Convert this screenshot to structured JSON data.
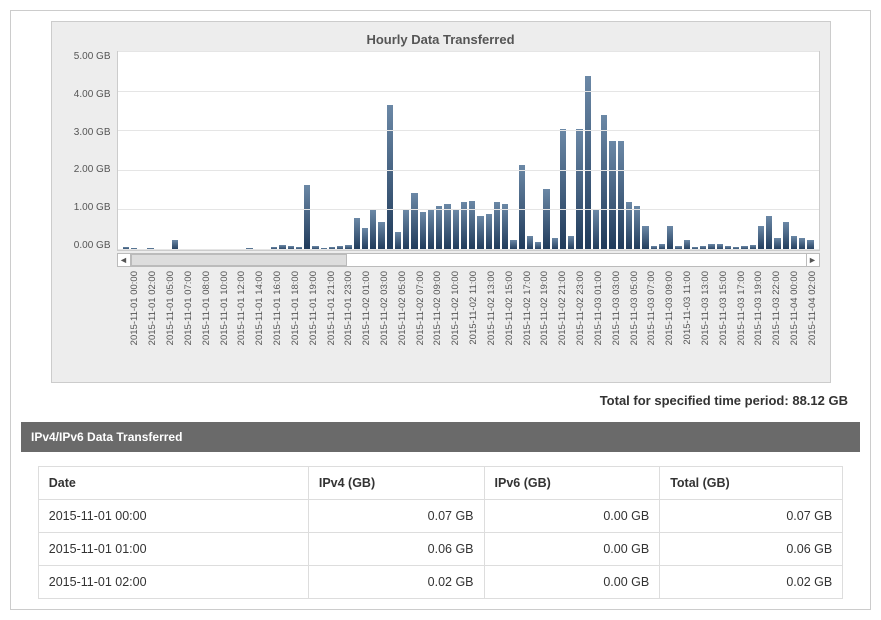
{
  "chart": {
    "type": "bar",
    "title": "Hourly Data Transferred",
    "ymax": 5.0,
    "ytick_step": 1.0,
    "ytick_labels": [
      "5.00 GB",
      "4.00 GB",
      "3.00 GB",
      "2.00 GB",
      "1.00 GB",
      "0.00 GB"
    ],
    "bar_gradient_top": "#6b88a6",
    "bar_gradient_bottom": "#1f3a5a",
    "panel_background": "#ededed",
    "plot_background": "#ffffff",
    "grid_color": "#e5e5e5",
    "border_color": "#cccccc",
    "title_color": "#555555",
    "title_fontsize": 13,
    "axis_fontsize": 10,
    "scroll": {
      "thumb_start_pct": 0,
      "thumb_width_pct": 32,
      "thumb_color": "#dddddd"
    },
    "categories": [
      "2015-11-01 00:00",
      "2015-11-01 02:00",
      "2015-11-01 05:00",
      "2015-11-01 07:00",
      "2015-11-01 08:00",
      "2015-11-01 10:00",
      "2015-11-01 12:00",
      "2015-11-01 14:00",
      "2015-11-01 16:00",
      "2015-11-01 18:00",
      "2015-11-01 19:00",
      "2015-11-01 21:00",
      "2015-11-01 23:00",
      "2015-11-02 01:00",
      "2015-11-02 03:00",
      "2015-11-02 05:00",
      "2015-11-02 07:00",
      "2015-11-02 09:00",
      "2015-11-02 10:00",
      "2015-11-02 11:00",
      "2015-11-02 13:00",
      "2015-11-02 15:00",
      "2015-11-02 17:00",
      "2015-11-02 19:00",
      "2015-11-02 21:00",
      "2015-11-02 23:00",
      "2015-11-03 01:00",
      "2015-11-03 03:00",
      "2015-11-03 05:00",
      "2015-11-03 07:00",
      "2015-11-03 09:00",
      "2015-11-03 11:00",
      "2015-11-03 13:00",
      "2015-11-03 15:00",
      "2015-11-03 17:00",
      "2015-11-03 19:00",
      "2015-11-03 22:00",
      "2015-11-04 00:00",
      "2015-11-04 02:00"
    ],
    "values": [
      0.07,
      0.06,
      0.02,
      0.04,
      0.03,
      0.02,
      0.26,
      0.03,
      0.02,
      0.02,
      0.03,
      0.02,
      0.03,
      0.03,
      0.03,
      0.06,
      0.03,
      0.02,
      0.08,
      0.13,
      0.1,
      0.08,
      1.65,
      0.1,
      0.05,
      0.08,
      0.1,
      0.12,
      0.8,
      0.55,
      1.0,
      0.7,
      3.65,
      0.45,
      1.0,
      1.45,
      0.95,
      1.0,
      1.1,
      1.15,
      1.0,
      1.2,
      1.25,
      0.85,
      0.9,
      1.2,
      1.15,
      0.25,
      2.15,
      0.35,
      0.2,
      1.55,
      0.3,
      3.05,
      0.35,
      3.05,
      4.4,
      1.0,
      3.4,
      2.75,
      2.75,
      1.2,
      1.1,
      0.6,
      0.1,
      0.15,
      0.6,
      0.1,
      0.25,
      0.08,
      0.1,
      0.15,
      0.15,
      0.1,
      0.08,
      0.1,
      0.12,
      0.6,
      0.85,
      0.3,
      0.7,
      0.35,
      0.3,
      0.25
    ]
  },
  "total_line": {
    "label": "Total for specified time period:",
    "value": "88.12 GB"
  },
  "table": {
    "section_title": "IPv4/IPv6 Data Transferred",
    "header_bg": "#6a6a6a",
    "header_color": "#ffffff",
    "border_color": "#dddddd",
    "columns": [
      "Date",
      "IPv4 (GB)",
      "IPv6 (GB)",
      "Total (GB)"
    ],
    "column_align": [
      "left",
      "right",
      "right",
      "right"
    ],
    "rows": [
      [
        "2015-11-01 00:00",
        "0.07 GB",
        "0.00 GB",
        "0.07 GB"
      ],
      [
        "2015-11-01 01:00",
        "0.06 GB",
        "0.00 GB",
        "0.06 GB"
      ],
      [
        "2015-11-01 02:00",
        "0.02 GB",
        "0.00 GB",
        "0.02 GB"
      ]
    ]
  }
}
